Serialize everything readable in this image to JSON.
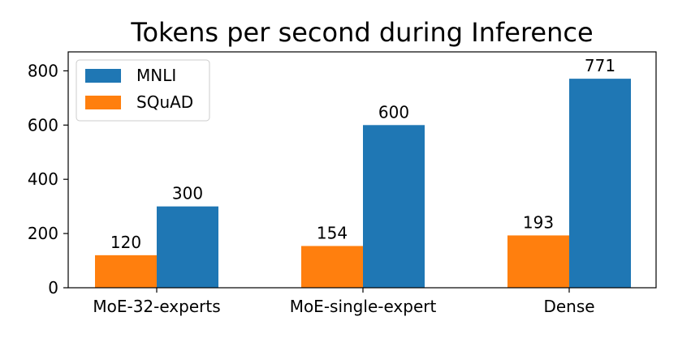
{
  "chart_data": {
    "type": "bar",
    "title": "Tokens per second during Inference",
    "xlabel": "",
    "ylabel": "",
    "categories": [
      "MoE-32-experts",
      "MoE-single-expert",
      "Dense"
    ],
    "series": [
      {
        "name": "SQuAD",
        "values": [
          120,
          154,
          193
        ],
        "color": "#ff7f0e"
      },
      {
        "name": "MNLI",
        "values": [
          300,
          600,
          771
        ],
        "color": "#1f77b4"
      }
    ],
    "legend_order": [
      "MNLI",
      "SQuAD"
    ],
    "legend_position": "top-left",
    "ylim": [
      0,
      870
    ],
    "yticks": [
      0,
      200,
      400,
      600,
      800
    ],
    "grid": false,
    "data_labels": true
  }
}
